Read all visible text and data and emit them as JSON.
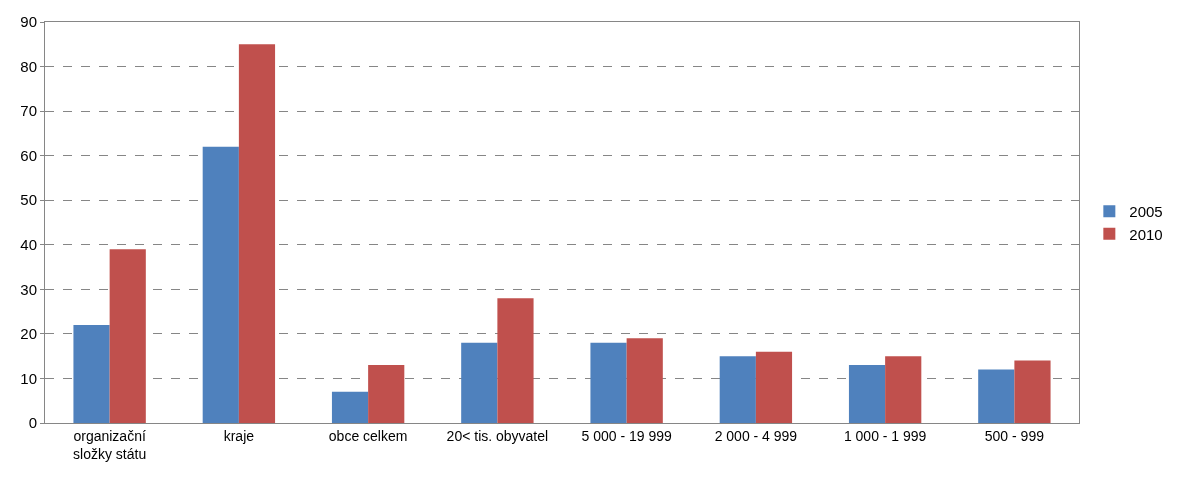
{
  "chart_data": {
    "type": "bar",
    "categories": [
      "organizační složky státu",
      "kraje",
      "obce celkem",
      "20< tis. obyvatel",
      "5 000 - 19 999",
      "2 000 - 4 999",
      "1 000 - 1 999",
      "500 - 999"
    ],
    "series": [
      {
        "name": "2005",
        "color": "#4f81bd",
        "values": [
          22,
          62,
          7,
          18,
          18,
          15,
          13,
          12
        ]
      },
      {
        "name": "2010",
        "color": "#c0504d",
        "values": [
          39,
          85,
          13,
          28,
          19,
          16,
          15,
          14
        ]
      }
    ],
    "ylim": [
      0,
      90
    ],
    "yticks": [
      0,
      10,
      20,
      30,
      40,
      50,
      60,
      70,
      80,
      90
    ],
    "grid": "y",
    "legend": "right"
  }
}
